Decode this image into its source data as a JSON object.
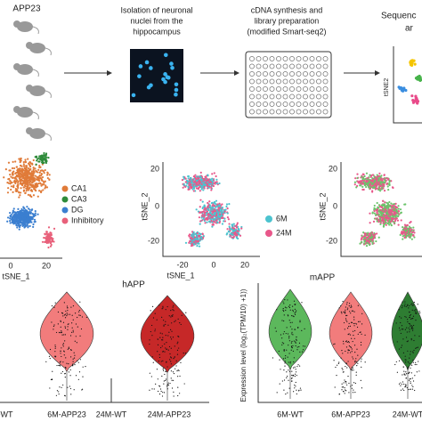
{
  "workflow": {
    "mouse_label": "APP23",
    "step1": [
      "Isolation of neuronal",
      "nuclei from the",
      "hippocampus"
    ],
    "step2": [
      "cDNA synthesis and",
      "library preparation",
      "(modified Smart-seq2)"
    ],
    "step3": [
      "Sequenc",
      "ar"
    ],
    "step3_axis": "tSNE2"
  },
  "panels": [
    {
      "legend": [
        "CA1",
        "CA3",
        "DG",
        "Inhibitory"
      ],
      "xticks": [
        "0",
        "20"
      ],
      "xlabel": "tSNE_1"
    },
    {
      "legend": [
        "6M",
        "24M"
      ],
      "xticks": [
        "-20",
        "0",
        "20"
      ],
      "yticks": [
        "20",
        "0",
        "-20"
      ],
      "xlabel": "tSNE_1",
      "ylabel": "tSNE_2"
    },
    {
      "yticks": [
        "20",
        "0",
        "-20"
      ],
      "ylabel": "tSNE_2"
    }
  ],
  "violins": [
    {
      "title": "hAPP",
      "groups": [
        "-WT",
        "6M-APP23",
        "24M-WT",
        "24M-APP23"
      ]
    },
    {
      "title": "mAPP",
      "ylabel": "Expression level (log₂(TPM/10) +1))",
      "groups": [
        "6M-WT",
        "6M-APP23",
        "24M-WT"
      ]
    }
  ]
}
